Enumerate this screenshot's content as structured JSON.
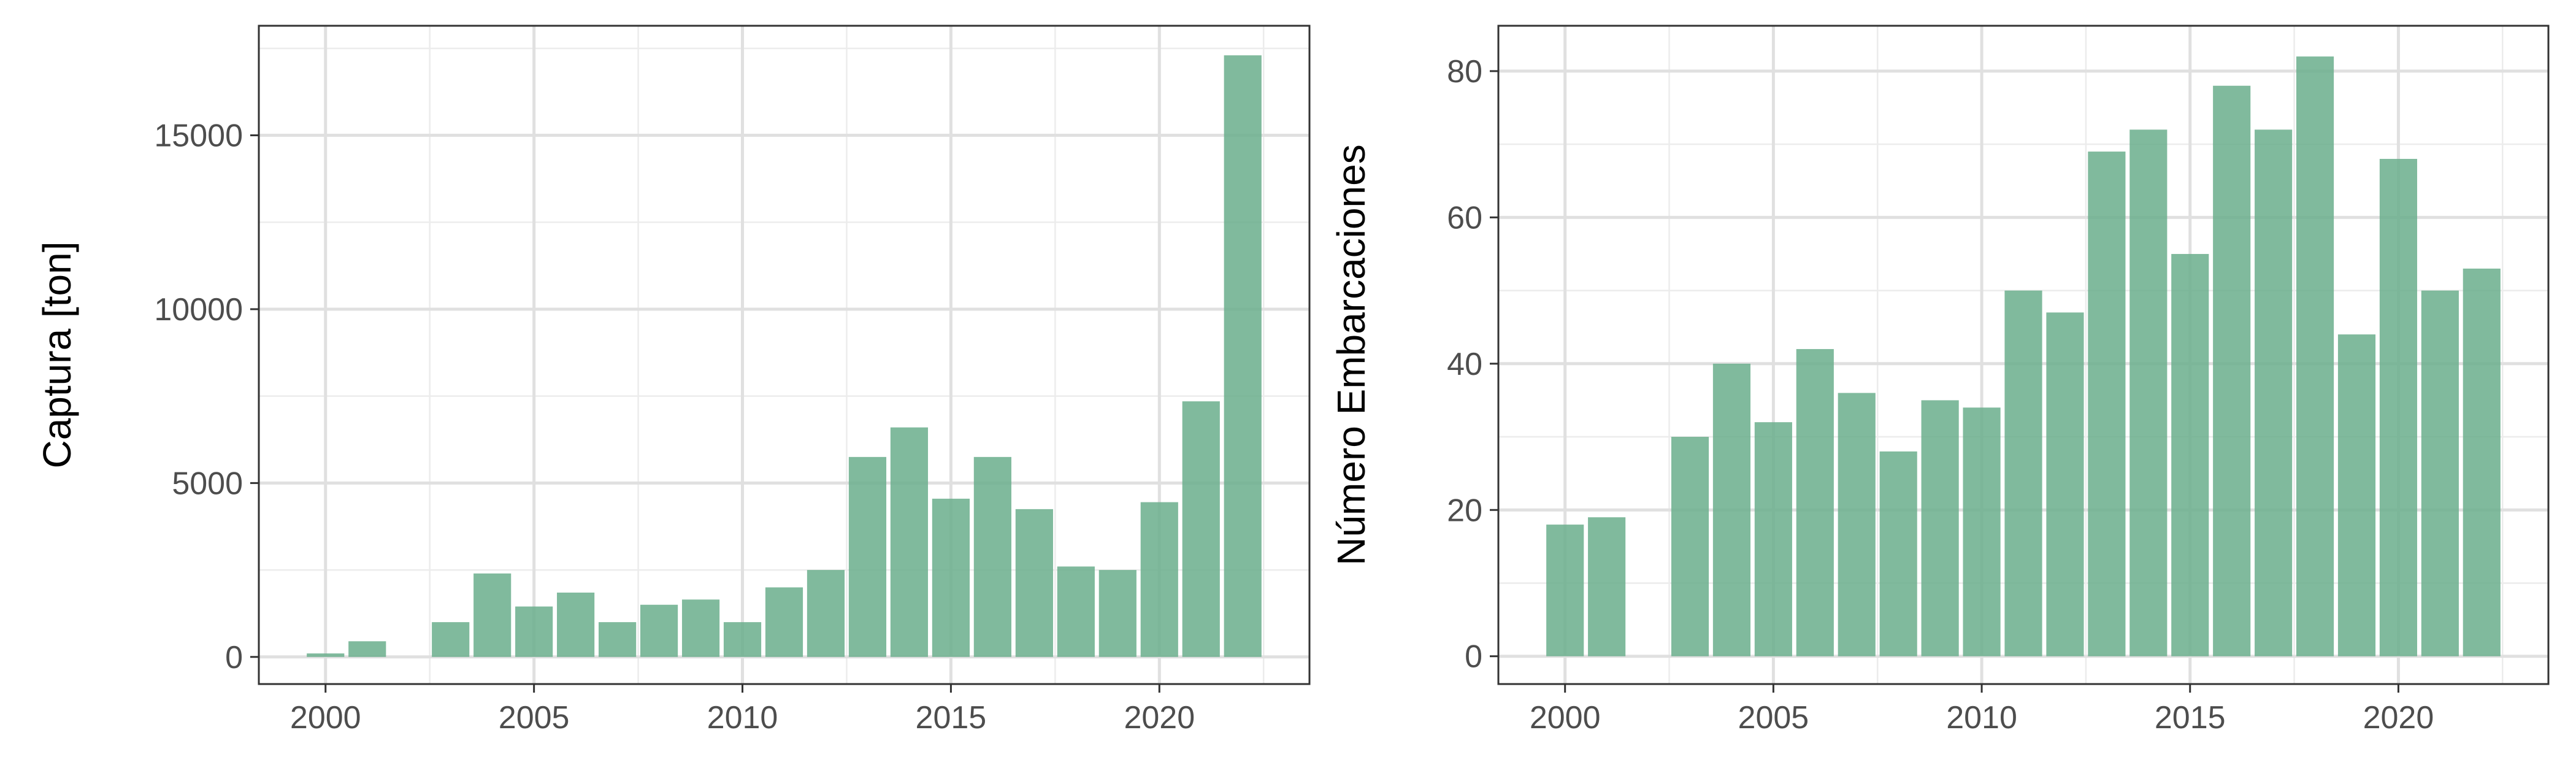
{
  "chart_data": [
    {
      "type": "bar",
      "ylabel": "Captura [ton]",
      "x": [
        2000,
        2001,
        2003,
        2004,
        2005,
        2006,
        2007,
        2008,
        2009,
        2010,
        2011,
        2012,
        2013,
        2014,
        2015,
        2016,
        2017,
        2018,
        2019,
        2020,
        2021,
        2022
      ],
      "values": [
        100,
        450,
        1000,
        2400,
        1450,
        1850,
        1000,
        1500,
        1650,
        1000,
        2000,
        2500,
        5750,
        6600,
        4550,
        5750,
        4250,
        2600,
        2500,
        4450,
        7350,
        17300
      ],
      "xlim": [
        1998.4,
        2023.6
      ],
      "ylim": [
        -780,
        18150
      ],
      "xticks": [
        2000,
        2005,
        2010,
        2015,
        2020
      ],
      "yticks": [
        0,
        5000,
        10000,
        15000
      ],
      "grid": true,
      "bar_color": "#6aae8c"
    },
    {
      "type": "bar",
      "ylabel": "Número Embarcaciones",
      "x": [
        2000,
        2001,
        2003,
        2004,
        2005,
        2006,
        2007,
        2008,
        2009,
        2010,
        2011,
        2012,
        2013,
        2014,
        2015,
        2016,
        2017,
        2018,
        2019,
        2020,
        2021,
        2022
      ],
      "values": [
        18,
        19,
        30,
        40,
        32,
        42,
        36,
        28,
        35,
        34,
        50,
        47,
        69,
        72,
        55,
        78,
        72,
        82,
        44,
        68,
        50,
        53
      ],
      "xlim": [
        1998.4,
        2023.6
      ],
      "ylim": [
        -3.8,
        86.2
      ],
      "xticks": [
        2000,
        2005,
        2010,
        2015,
        2020
      ],
      "yticks": [
        0,
        20,
        40,
        60,
        80
      ],
      "grid": true,
      "bar_color": "#6aae8c"
    }
  ]
}
